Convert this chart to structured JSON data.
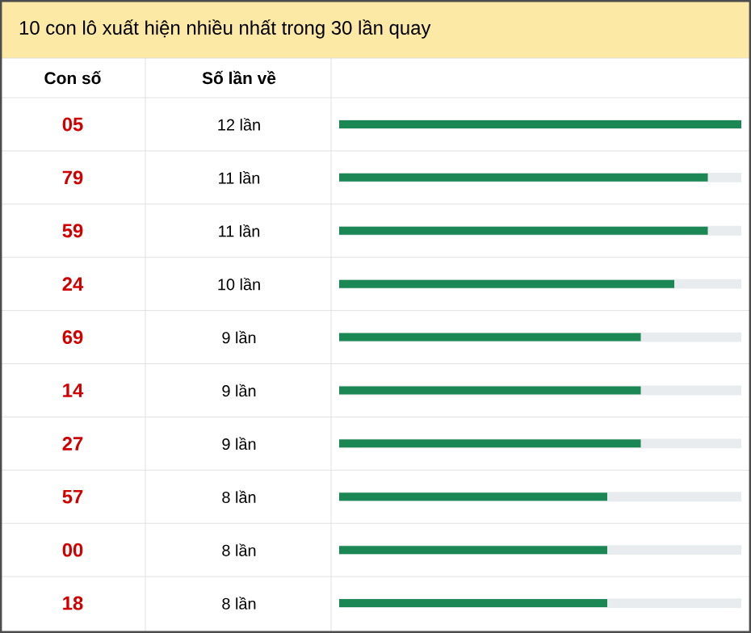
{
  "chart_data": {
    "type": "bar",
    "orientation": "horizontal",
    "title": "10 con lô xuất hiện nhiều nhất trong 30 lần quay",
    "ylabel": "Con số",
    "xlabel": "Số lần về",
    "categories": [
      "05",
      "79",
      "59",
      "24",
      "69",
      "14",
      "27",
      "57",
      "00",
      "18"
    ],
    "values": [
      12,
      11,
      11,
      10,
      9,
      9,
      9,
      8,
      8,
      8
    ],
    "value_labels": [
      "12 lần",
      "11 lần",
      "11 lần",
      "10 lần",
      "9 lần",
      "9 lần",
      "9 lần",
      "8 lần",
      "8 lần",
      "8 lần"
    ],
    "color": "#1a8754"
  }
}
